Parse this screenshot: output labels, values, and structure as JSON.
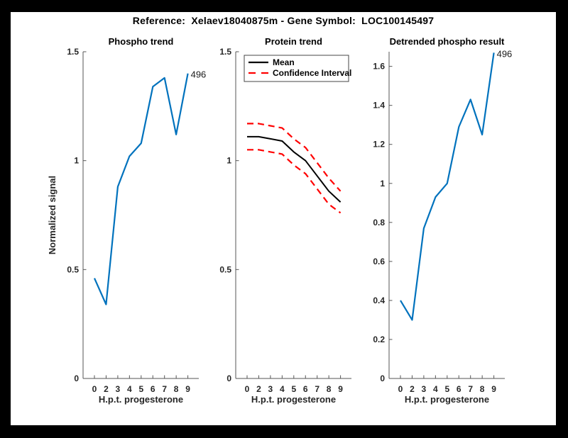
{
  "figure": {
    "title": "Reference:  Xelaev18040875m - Gene Symbol:  LOC100145497",
    "surround_color": "#000000",
    "canvas_color": "#ffffff"
  },
  "styles": {
    "blue": "#0072BD",
    "red": "#FF0000",
    "black": "#000000",
    "axis_color": "#555555",
    "text_color": "#262626"
  },
  "chart_data": [
    {
      "type": "line",
      "title": "Phospho trend",
      "xlabel": "H.p.t. progesterone",
      "ylabel": "Normalized signal",
      "x_type": "category",
      "x_ticklabels": [
        "0",
        "2",
        "3",
        "4",
        "5",
        "6",
        "7",
        "8",
        "9"
      ],
      "ylim": [
        0,
        1.5
      ],
      "yticks": [
        0,
        0.5,
        1,
        1.5
      ],
      "ytick_labels": [
        "0",
        "0.5",
        "1",
        "1.5"
      ],
      "grid": false,
      "legend": null,
      "end_label": "496",
      "series": [
        {
          "name": "496",
          "color": "#0072BD",
          "dash": "solid",
          "values": [
            0.46,
            0.34,
            0.88,
            1.02,
            1.08,
            1.34,
            1.38,
            1.12,
            1.4
          ]
        }
      ]
    },
    {
      "type": "line",
      "title": "Protein trend",
      "xlabel": "H.p.t. progesterone",
      "ylabel": "",
      "x_type": "category",
      "x_ticklabels": [
        "0",
        "2",
        "3",
        "4",
        "5",
        "6",
        "7",
        "8",
        "9"
      ],
      "ylim": [
        0,
        1.5
      ],
      "yticks": [
        0,
        0.5,
        1,
        1.5
      ],
      "ytick_labels": [
        "0",
        "0.5",
        "1",
        "1.5"
      ],
      "grid": false,
      "end_label": null,
      "legend": {
        "position": "top-left",
        "entries": [
          {
            "label": "Mean",
            "color": "#000000",
            "dash": "solid"
          },
          {
            "label": "Confidence Interval",
            "color": "#FF0000",
            "dash": "dashed"
          }
        ]
      },
      "series": [
        {
          "name": "Mean",
          "color": "#000000",
          "dash": "solid",
          "values": [
            1.11,
            1.11,
            1.1,
            1.09,
            1.04,
            1.0,
            0.93,
            0.86,
            0.81
          ]
        },
        {
          "name": "Confidence Interval",
          "color": "#FF0000",
          "dash": "dashed",
          "values": [
            1.17,
            1.17,
            1.16,
            1.15,
            1.1,
            1.06,
            0.99,
            0.92,
            0.86
          ]
        },
        {
          "name": "Confidence Interval",
          "color": "#FF0000",
          "dash": "dashed",
          "values": [
            1.05,
            1.05,
            1.04,
            1.03,
            0.98,
            0.94,
            0.87,
            0.8,
            0.76
          ]
        }
      ]
    },
    {
      "type": "line",
      "title": "Detrended phospho result",
      "xlabel": "H.p.t. progesterone",
      "ylabel": "",
      "x_type": "category",
      "x_ticklabels": [
        "0",
        "2",
        "3",
        "4",
        "5",
        "6",
        "7",
        "8",
        "9"
      ],
      "ylim": [
        0,
        1.675
      ],
      "yticks": [
        0,
        0.2,
        0.4,
        0.6,
        0.8,
        1,
        1.2,
        1.4,
        1.6
      ],
      "ytick_labels": [
        "0",
        "0.2",
        "0.4",
        "0.6",
        "0.8",
        "1",
        "1.2",
        "1.4",
        "1.6"
      ],
      "grid": false,
      "legend": null,
      "end_label": "496",
      "series": [
        {
          "name": "496",
          "color": "#0072BD",
          "dash": "solid",
          "values": [
            0.4,
            0.3,
            0.77,
            0.93,
            1.0,
            1.29,
            1.43,
            1.25,
            1.67
          ]
        }
      ]
    }
  ]
}
